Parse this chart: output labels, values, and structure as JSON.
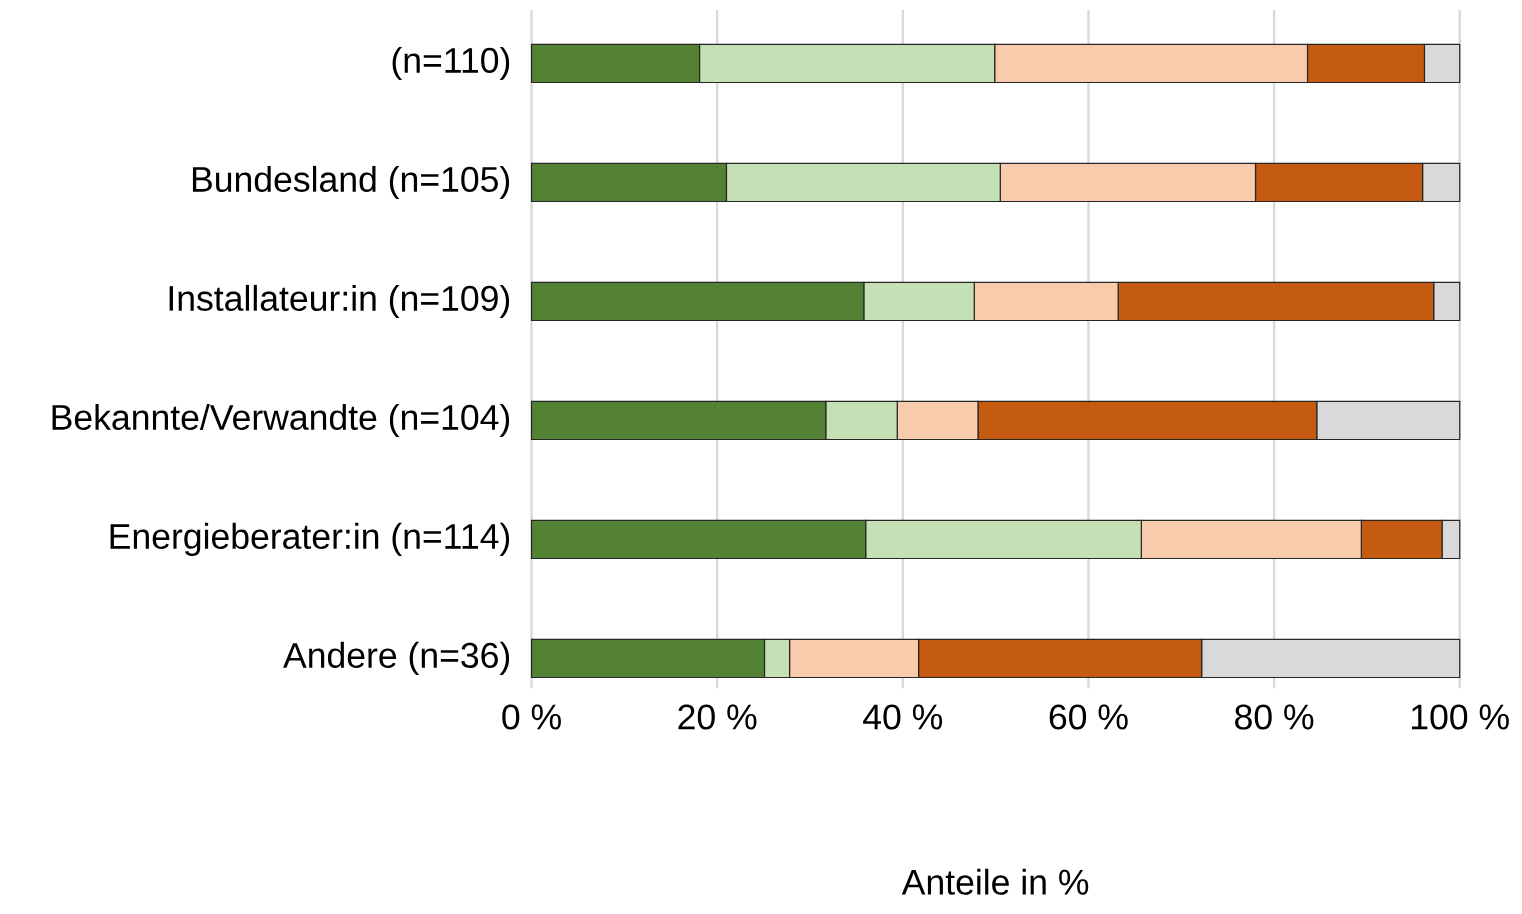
{
  "chart_data": {
    "type": "bar",
    "orientation": "horizontal",
    "stacked": true,
    "xlabel": "Anteile in %",
    "categories": [
      "(n=110)",
      "Bundesland (n=105)",
      "Installateur:in (n=109)",
      "Bekannte/Verwandte (n=104)",
      "Energieberater:in (n=114)",
      "Andere (n=36)"
    ],
    "series": [
      {
        "color": "#548235",
        "values": [
          18.1,
          21.0,
          35.8,
          31.7,
          36.0,
          25.1
        ]
      },
      {
        "color": "#c5e0b4",
        "values": [
          31.8,
          29.5,
          11.9,
          7.7,
          29.7,
          2.7
        ]
      },
      {
        "color": "#f8cbad",
        "values": [
          33.7,
          27.5,
          15.5,
          8.7,
          23.7,
          13.9
        ]
      },
      {
        "color": "#c55a11",
        "values": [
          12.6,
          18.0,
          34.0,
          36.5,
          8.7,
          30.5
        ]
      },
      {
        "color": "#d9d9d9",
        "values": [
          3.8,
          4.0,
          2.8,
          15.4,
          1.9,
          27.8
        ]
      }
    ],
    "xlim": [
      0,
      100
    ],
    "xticks": [
      {
        "value": 0,
        "label": "0 %"
      },
      {
        "value": 20,
        "label": "20 %"
      },
      {
        "value": 40,
        "label": "40 %"
      },
      {
        "value": 60,
        "label": "60 %"
      },
      {
        "value": 80,
        "label": "80 %"
      },
      {
        "value": 100,
        "label": "100 %"
      }
    ],
    "grid": "x"
  }
}
